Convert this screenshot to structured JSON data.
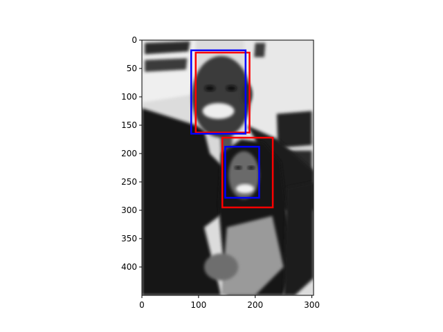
{
  "chart_data": {
    "type": "image",
    "xlim": [
      0,
      303
    ],
    "ylim": [
      450,
      0
    ],
    "y_inverted": true,
    "xticks": [
      0,
      100,
      200,
      300
    ],
    "yticks": [
      0,
      50,
      100,
      150,
      200,
      250,
      300,
      350,
      400
    ],
    "image": {
      "description": "grayscale photograph of a smiling man and woman posing together",
      "colormap": "gray"
    },
    "overlays": [
      {
        "name": "",
        "color": "#ff0000",
        "kind": "rectangle",
        "x0": 95,
        "y0": 22,
        "x1": 190,
        "y1": 163
      },
      {
        "name": "",
        "color": "#0000ff",
        "kind": "rectangle",
        "x0": 87,
        "y0": 18,
        "x1": 183,
        "y1": 165
      },
      {
        "name": "",
        "color": "#ff0000",
        "kind": "rectangle",
        "x0": 142,
        "y0": 172,
        "x1": 231,
        "y1": 295
      },
      {
        "name": "",
        "color": "#0000ff",
        "kind": "rectangle",
        "x0": 147,
        "y0": 188,
        "x1": 207,
        "y1": 278
      }
    ],
    "title": "",
    "xlabel": "",
    "ylabel": "",
    "grid": false,
    "legend": false
  }
}
